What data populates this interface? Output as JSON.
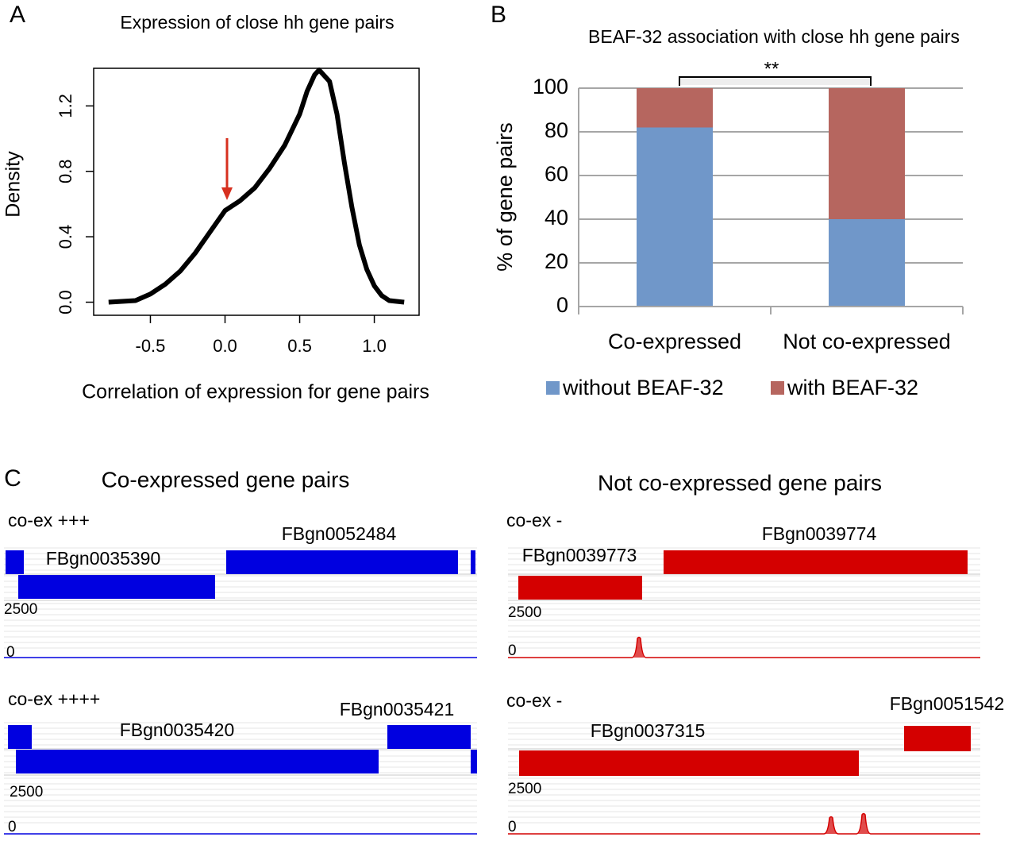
{
  "panel_labels": [
    "A",
    "B",
    "C"
  ],
  "chart_data": [
    {
      "type": "line",
      "title": "Expression of close hh gene pairs",
      "x_label": "Correlation of expression for gene pairs",
      "y_label": "Density",
      "x": [
        -0.78,
        -0.6,
        -0.5,
        -0.4,
        -0.3,
        -0.2,
        -0.1,
        0,
        0.05,
        0.1,
        0.2,
        0.3,
        0.4,
        0.5,
        0.55,
        0.6,
        0.63,
        0.7,
        0.75,
        0.8,
        0.85,
        0.9,
        0.95,
        1.0,
        1.05,
        1.1,
        1.2
      ],
      "values": [
        0,
        0.01,
        0.05,
        0.11,
        0.19,
        0.3,
        0.43,
        0.56,
        0.59,
        0.62,
        0.7,
        0.82,
        0.96,
        1.15,
        1.29,
        1.39,
        1.42,
        1.35,
        1.15,
        0.85,
        0.58,
        0.35,
        0.2,
        0.1,
        0.04,
        0.01,
        0
      ],
      "color": "#000000",
      "xlim": [
        -0.88,
        1.3
      ],
      "ylim": [
        -0.08,
        1.43
      ],
      "xticks": [
        -0.5,
        {
          "value": 0,
          "label": "0.0"
        },
        0.5,
        {
          "value": 1,
          "label": "1.0"
        }
      ],
      "yticks": [
        {
          "value": 0,
          "label": "0.0"
        },
        {
          "value": 0.4,
          "label": "0.4"
        },
        {
          "value": 0.8,
          "label": "0.8"
        },
        {
          "value": 1.2,
          "label": "1.2"
        }
      ]
    },
    {
      "type": "bar",
      "stacked": true,
      "title": "BEAF-32 association with close hh gene pairs",
      "y_label": "% of gene pairs",
      "annotation": "**",
      "categories": [
        "Co-expressed",
        "Not co-expressed"
      ],
      "series": [
        {
          "name": "without BEAF-32",
          "color": "#7097c9",
          "values": [
            82,
            40
          ]
        },
        {
          "name": "with BEAF-32",
          "color": "#b6665f",
          "values": [
            18,
            60
          ]
        }
      ],
      "ylim": [
        0,
        100
      ],
      "yticks": [
        0,
        20,
        40,
        60,
        80,
        100
      ],
      "grid": true,
      "legend": "bottom"
    }
  ],
  "genome_tracks": {
    "titles": [
      "Co-expressed gene pairs",
      "Not co-expressed gene pairs"
    ],
    "tracks": [
      {
        "label": "co-ex +++",
        "genes": [
          "FBgn0052484",
          "FBgn0035390"
        ],
        "scale": [
          2500,
          0
        ]
      },
      {
        "label": "co-ex ++++",
        "genes": [
          "FBgn0035421",
          "FBgn0035420"
        ],
        "scale": [
          2500,
          0
        ]
      },
      {
        "label": "co-ex -",
        "genes": [
          "FBgn0039774",
          "FBgn0039773"
        ],
        "scale": [
          2500,
          0
        ]
      },
      {
        "label": "co-ex -",
        "genes": [
          "FBgn0051542",
          "FBgn0037315"
        ],
        "scale": [
          2500,
          0
        ]
      }
    ]
  }
}
